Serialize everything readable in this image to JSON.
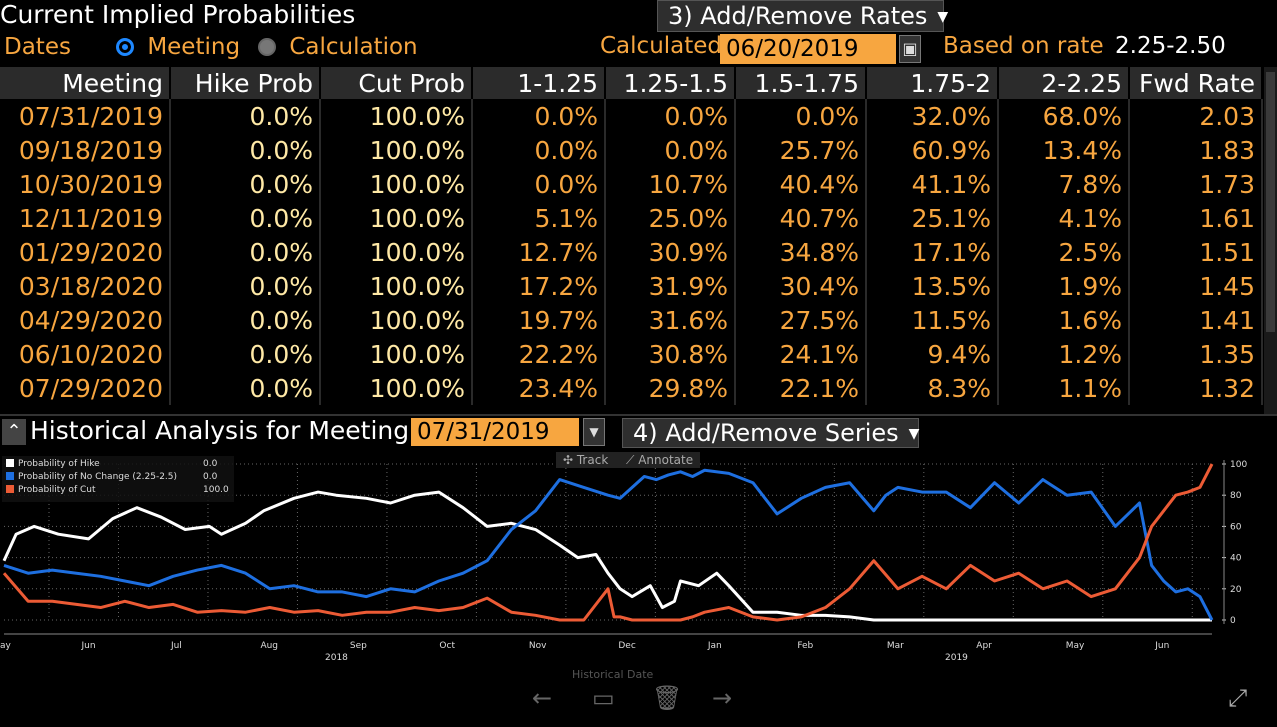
{
  "header": {
    "title": "Current Implied Probabilities",
    "rates_menu": "3) Add/Remove Rates",
    "dates_label": "Dates",
    "radio_meeting": "Meeting",
    "radio_calculation": "Calculation",
    "calculated_label": "Calculated",
    "calculated_date": "06/20/2019",
    "based_label": "Based on rate",
    "based_value": "2.25-2.50"
  },
  "table": {
    "columns": [
      "Meeting",
      "Hike Prob",
      "Cut Prob",
      "1-1.25",
      "1.25-1.5",
      "1.5-1.75",
      "1.75-2",
      "2-2.25",
      "Fwd Rate"
    ],
    "rows": [
      [
        "07/31/2019",
        "0.0%",
        "100.0%",
        "0.0%",
        "0.0%",
        "0.0%",
        "32.0%",
        "68.0%",
        "2.03"
      ],
      [
        "09/18/2019",
        "0.0%",
        "100.0%",
        "0.0%",
        "0.0%",
        "25.7%",
        "60.9%",
        "13.4%",
        "1.83"
      ],
      [
        "10/30/2019",
        "0.0%",
        "100.0%",
        "0.0%",
        "10.7%",
        "40.4%",
        "41.1%",
        "7.8%",
        "1.73"
      ],
      [
        "12/11/2019",
        "0.0%",
        "100.0%",
        "5.1%",
        "25.0%",
        "40.7%",
        "25.1%",
        "4.1%",
        "1.61"
      ],
      [
        "01/29/2020",
        "0.0%",
        "100.0%",
        "12.7%",
        "30.9%",
        "34.8%",
        "17.1%",
        "2.5%",
        "1.51"
      ],
      [
        "03/18/2020",
        "0.0%",
        "100.0%",
        "17.2%",
        "31.9%",
        "30.4%",
        "13.5%",
        "1.9%",
        "1.45"
      ],
      [
        "04/29/2020",
        "0.0%",
        "100.0%",
        "19.7%",
        "31.6%",
        "27.5%",
        "11.5%",
        "1.6%",
        "1.41"
      ],
      [
        "06/10/2020",
        "0.0%",
        "100.0%",
        "22.2%",
        "30.8%",
        "24.1%",
        "9.4%",
        "1.2%",
        "1.35"
      ],
      [
        "07/29/2020",
        "0.0%",
        "100.0%",
        "23.4%",
        "29.8%",
        "22.1%",
        "8.3%",
        "1.1%",
        "1.32"
      ]
    ]
  },
  "historical": {
    "title": "Historical Analysis for Meeting",
    "meeting_date": "07/31/2019",
    "series_menu": "4) Add/Remove Series",
    "track_label": "Track",
    "annotate_label": "Annotate",
    "xaxis_title": "Historical Date"
  },
  "colors": {
    "hike": "#ffffff",
    "nochange": "#1e6fe0",
    "cut": "#ec5b35",
    "amber": "#f7a640"
  },
  "chart_data": {
    "type": "line",
    "legend": [
      {
        "name": "Probability of Hike",
        "value": "0.0"
      },
      {
        "name": "Probability of No Change (2.25-2.5)",
        "value": "0.0"
      },
      {
        "name": "Probability of Cut",
        "value": "100.0"
      }
    ],
    "ylim": [
      0,
      100
    ],
    "yticks": [
      "0",
      "20",
      "40",
      "60",
      "80",
      "100"
    ],
    "xticks": [
      "ay",
      "Jun",
      "Jul",
      "Aug",
      "Sep",
      "Oct",
      "Nov",
      "Dec",
      "Jan",
      "Feb",
      "Mar",
      "Apr",
      "May",
      "Jun"
    ],
    "year_labels": [
      "2018",
      "2019"
    ],
    "x_index_range": [
      0,
      1000
    ],
    "series": [
      {
        "name": "Probability of Hike",
        "color": "#ffffff",
        "x": [
          0,
          10,
          25,
          45,
          70,
          90,
          110,
          130,
          150,
          170,
          180,
          200,
          215,
          240,
          260,
          275,
          300,
          320,
          340,
          360,
          380,
          400,
          420,
          440,
          460,
          475,
          490,
          500,
          510,
          520,
          535,
          545,
          555,
          560,
          575,
          590,
          600,
          620,
          640,
          660,
          680,
          700,
          720,
          740,
          760,
          780,
          800,
          850,
          900,
          950,
          1000
        ],
        "y": [
          38,
          55,
          60,
          55,
          52,
          65,
          72,
          66,
          58,
          60,
          55,
          62,
          70,
          78,
          82,
          80,
          78,
          75,
          80,
          82,
          72,
          60,
          62,
          58,
          48,
          40,
          42,
          30,
          20,
          15,
          22,
          8,
          12,
          25,
          22,
          30,
          22,
          5,
          5,
          3,
          3,
          2,
          0,
          0,
          0,
          0,
          0,
          0,
          0,
          0,
          0
        ]
      },
      {
        "name": "Probability of No Change (2.25-2.5)",
        "color": "#1e6fe0",
        "x": [
          0,
          20,
          40,
          60,
          80,
          100,
          120,
          140,
          160,
          180,
          200,
          220,
          240,
          260,
          280,
          300,
          320,
          340,
          360,
          380,
          400,
          420,
          440,
          460,
          480,
          500,
          510,
          520,
          530,
          540,
          550,
          560,
          570,
          580,
          600,
          620,
          640,
          660,
          680,
          700,
          720,
          730,
          740,
          760,
          780,
          800,
          820,
          840,
          860,
          880,
          900,
          920,
          940,
          950,
          960,
          970,
          980,
          990,
          1000
        ],
        "y": [
          35,
          30,
          32,
          30,
          28,
          25,
          22,
          28,
          32,
          35,
          30,
          20,
          22,
          18,
          18,
          15,
          20,
          18,
          25,
          30,
          38,
          58,
          70,
          90,
          85,
          80,
          78,
          85,
          92,
          90,
          93,
          95,
          92,
          96,
          94,
          88,
          68,
          78,
          85,
          88,
          70,
          80,
          85,
          82,
          82,
          72,
          88,
          75,
          90,
          80,
          82,
          60,
          75,
          35,
          25,
          18,
          20,
          15,
          0
        ]
      },
      {
        "name": "Probability of Cut",
        "color": "#ec5b35",
        "x": [
          0,
          20,
          40,
          60,
          80,
          100,
          120,
          140,
          160,
          180,
          200,
          220,
          240,
          260,
          280,
          300,
          320,
          340,
          360,
          380,
          400,
          420,
          440,
          460,
          480,
          500,
          505,
          510,
          520,
          540,
          560,
          570,
          580,
          600,
          620,
          640,
          660,
          680,
          700,
          720,
          740,
          760,
          780,
          800,
          820,
          840,
          860,
          880,
          900,
          920,
          940,
          950,
          960,
          970,
          980,
          990,
          1000
        ],
        "y": [
          30,
          12,
          12,
          10,
          8,
          12,
          8,
          10,
          5,
          6,
          5,
          8,
          5,
          6,
          3,
          5,
          5,
          8,
          6,
          8,
          14,
          5,
          3,
          0,
          0,
          20,
          2,
          2,
          0,
          0,
          0,
          2,
          5,
          8,
          2,
          0,
          2,
          8,
          20,
          38,
          20,
          28,
          20,
          35,
          25,
          30,
          20,
          25,
          15,
          20,
          40,
          60,
          70,
          80,
          82,
          85,
          100
        ]
      }
    ]
  }
}
